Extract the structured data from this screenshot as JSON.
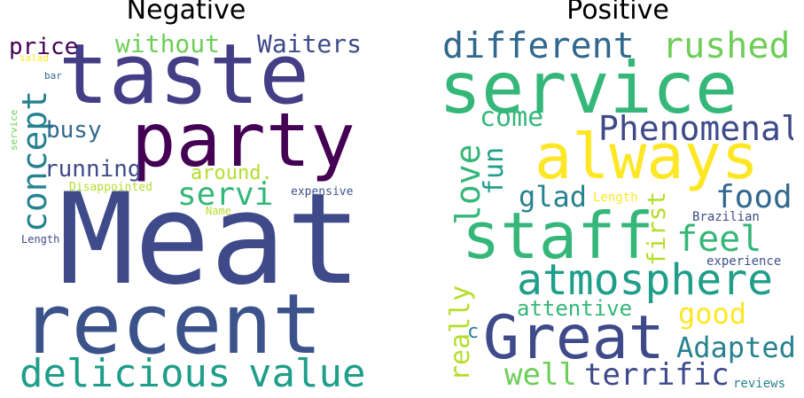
{
  "titles": {
    "negative": "Negative",
    "positive": "Positive"
  },
  "palette": {
    "dark_purple": "#440154",
    "indigo": "#3e4a89",
    "blue": "#31688e",
    "teal": "#26828e",
    "green_teal": "#1f9e89",
    "green": "#35b779",
    "light_green": "#6ece58",
    "lime": "#b5de2b",
    "yellow": "#fde725"
  },
  "negative_words": [
    "taste",
    "party",
    "Meat",
    "recent",
    "delicious",
    "value",
    "concept",
    "without",
    "Waiters",
    "price",
    "busy",
    "running",
    "around.",
    "servi",
    "Disappointed",
    "expensive",
    "Name",
    "Length",
    "salad",
    "bar",
    "service"
  ],
  "positive_words": [
    "different",
    "rushed",
    "service",
    "come",
    "Phenomenal",
    "always",
    "fun",
    "love",
    "glad",
    "Length",
    "food",
    "staff",
    "first",
    "Brazilian",
    "feel",
    "atmosphere",
    "experience",
    "attentive",
    "good",
    "really",
    "c",
    "Great",
    "Adapted",
    "well",
    "terrific",
    "reviews"
  ]
}
